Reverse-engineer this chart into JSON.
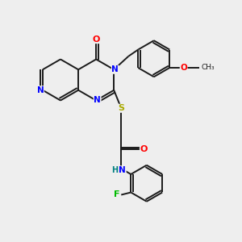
{
  "bg_color": "#eeeeee",
  "bond_color": "#1a1a1a",
  "atom_colors": {
    "N": "#0000ff",
    "O": "#ff0000",
    "S": "#aaaa00",
    "F": "#00bb00",
    "H": "#008080",
    "C": "#1a1a1a"
  },
  "figsize": [
    3.0,
    3.0
  ],
  "dpi": 100
}
